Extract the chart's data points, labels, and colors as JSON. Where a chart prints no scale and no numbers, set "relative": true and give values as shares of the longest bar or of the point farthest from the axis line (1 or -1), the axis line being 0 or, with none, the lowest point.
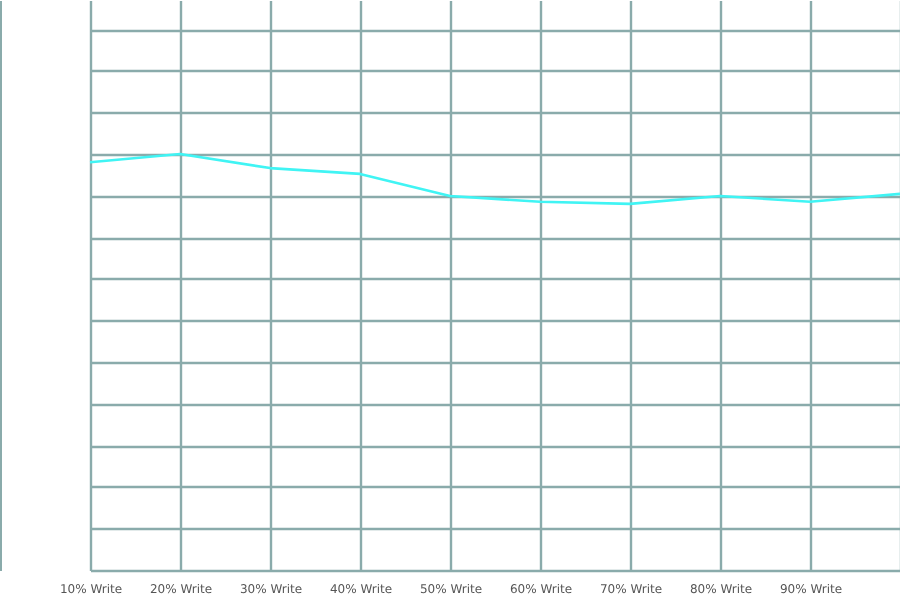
{
  "chart_data": {
    "type": "line",
    "relative": true,
    "categories": [
      "10% Write",
      "20% Write",
      "30% Write",
      "40% Write",
      "50% Write",
      "60% Write",
      "70% Write",
      "80% Write",
      "90% Write",
      null
    ],
    "series": [
      {
        "color": "#40f4f4",
        "values": [
          0.98,
          1,
          0.966,
          0.952,
          0.899,
          0.885,
          0.88,
          0.899,
          0.885,
          0.904
        ]
      }
    ],
    "grid": true,
    "marker": "none",
    "line_style": "solid"
  }
}
